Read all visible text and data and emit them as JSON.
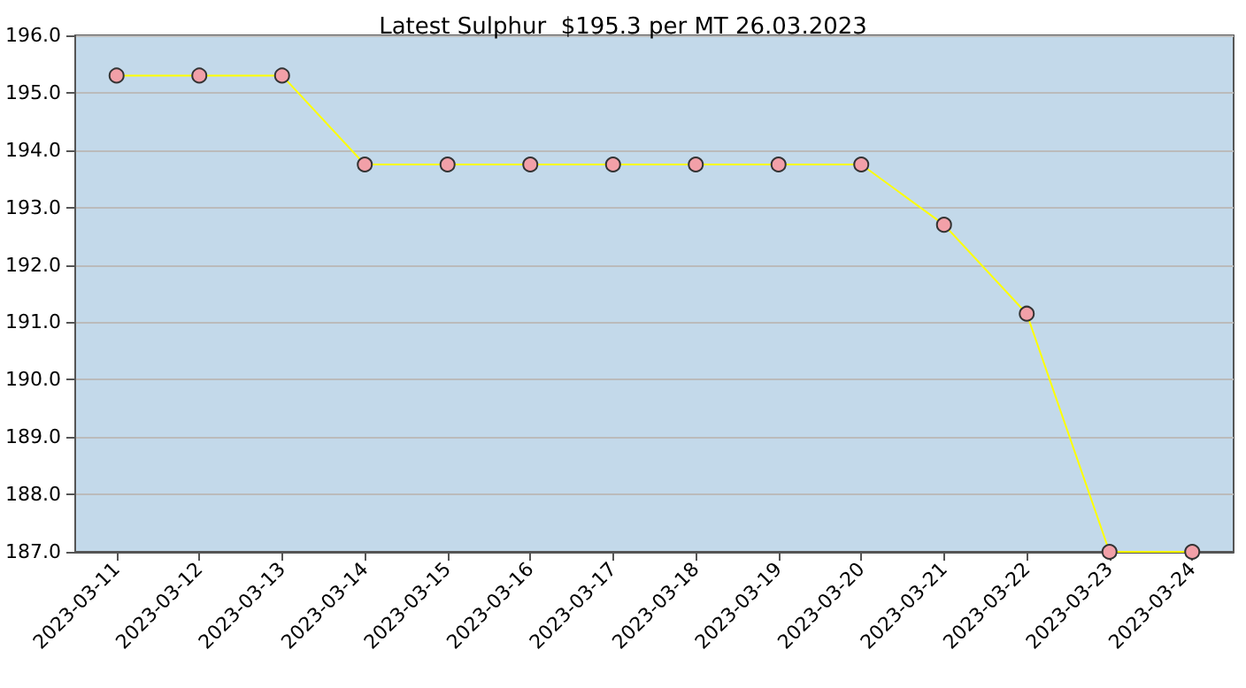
{
  "chart_data": {
    "type": "line",
    "title": "Latest Sulphur  $195.3 per MT 26.03.2023",
    "categories": [
      "2023-03-11",
      "2023-03-12",
      "2023-03-13",
      "2023-03-14",
      "2023-03-15",
      "2023-03-16",
      "2023-03-17",
      "2023-03-18",
      "2023-03-19",
      "2023-03-20",
      "2023-03-21",
      "2023-03-22",
      "2023-03-23",
      "2023-03-24"
    ],
    "series": [
      {
        "color": "#ffff00",
        "values": [
          195.3,
          195.3,
          195.3,
          193.75,
          193.75,
          193.75,
          193.75,
          193.75,
          193.75,
          193.75,
          192.7,
          191.15,
          187.0,
          187.0
        ]
      }
    ],
    "ylim": [
      187,
      196
    ],
    "yticks": [
      {
        "value": 187,
        "label": "187.0"
      },
      {
        "value": 188,
        "label": "188.0"
      },
      {
        "value": 189,
        "label": "189.0"
      },
      {
        "value": 190,
        "label": "190.0"
      },
      {
        "value": 191,
        "label": "191.0"
      },
      {
        "value": 192,
        "label": "192.0"
      },
      {
        "value": 193,
        "label": "193.0"
      },
      {
        "value": 194,
        "label": "194.0"
      },
      {
        "value": 195,
        "label": "195.0"
      },
      {
        "value": 196,
        "label": "196.0"
      }
    ],
    "grid": "y",
    "marker": "circle",
    "line_style": "solid"
  }
}
